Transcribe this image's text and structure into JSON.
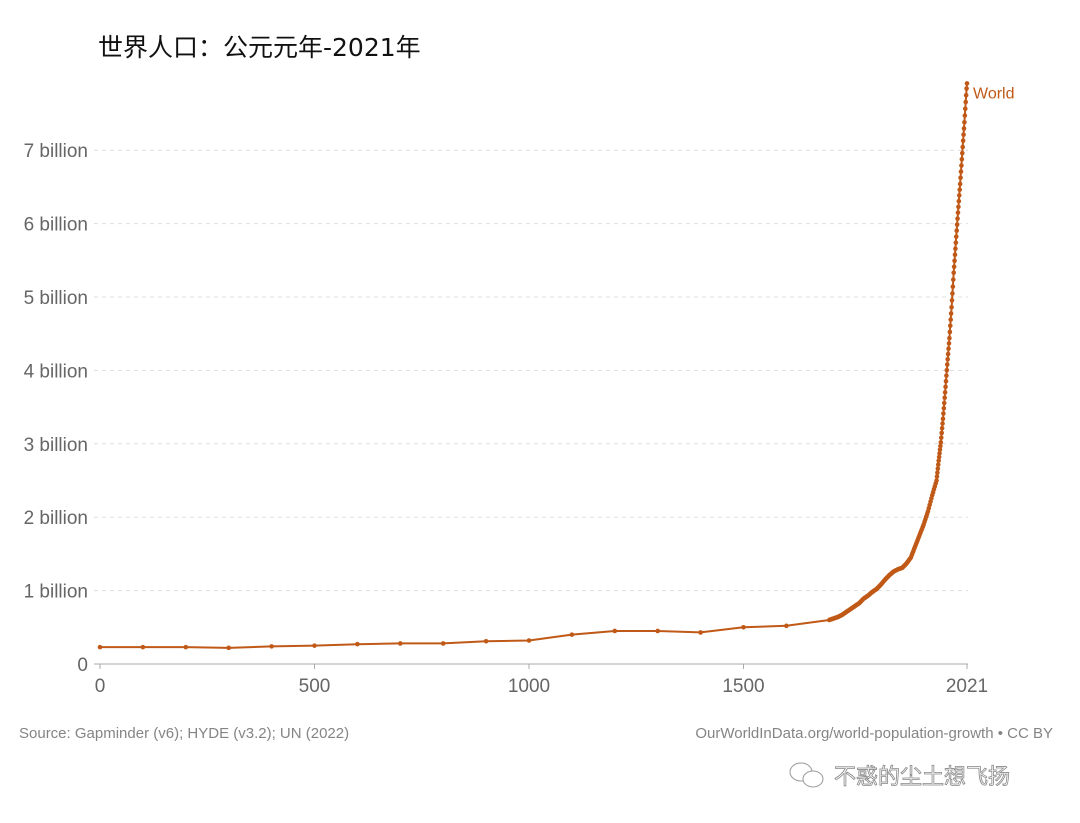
{
  "chart_data": {
    "type": "line",
    "title": "世界人口：公元元年-2021年",
    "xlabel": "",
    "ylabel": "",
    "xlim": [
      0,
      2021
    ],
    "ylim": [
      0,
      8
    ],
    "grid": true,
    "x_ticks": [
      0,
      500,
      1000,
      1500,
      2021
    ],
    "x_tick_labels": [
      "0",
      "500",
      "1000",
      "1500",
      "2021"
    ],
    "y_ticks": [
      0,
      1,
      2,
      3,
      4,
      5,
      6,
      7
    ],
    "y_tick_labels": [
      "0",
      "1 billion",
      "2 billion",
      "3 billion",
      "4 billion",
      "5 billion",
      "6 billion",
      "7 billion"
    ],
    "color": "#c05917",
    "series": [
      {
        "name": "World",
        "x": [
          0,
          100,
          200,
          300,
          400,
          500,
          600,
          700,
          800,
          900,
          1000,
          1100,
          1200,
          1300,
          1400,
          1500,
          1600,
          1700,
          1710,
          1720,
          1730,
          1740,
          1750,
          1760,
          1770,
          1780,
          1790,
          1800,
          1810,
          1820,
          1830,
          1840,
          1850,
          1860,
          1870,
          1880,
          1890,
          1900,
          1910,
          1920,
          1930,
          1940,
          1950,
          1955,
          1960,
          1965,
          1970,
          1975,
          1980,
          1985,
          1990,
          1995,
          2000,
          2005,
          2010,
          2015,
          2020,
          2021
        ],
        "values": [
          0.23,
          0.23,
          0.23,
          0.22,
          0.24,
          0.25,
          0.27,
          0.28,
          0.28,
          0.31,
          0.32,
          0.4,
          0.45,
          0.45,
          0.43,
          0.5,
          0.52,
          0.6,
          0.62,
          0.64,
          0.67,
          0.71,
          0.75,
          0.79,
          0.83,
          0.89,
          0.93,
          0.98,
          1.02,
          1.08,
          1.15,
          1.21,
          1.26,
          1.29,
          1.31,
          1.37,
          1.45,
          1.6,
          1.75,
          1.9,
          2.08,
          2.3,
          2.5,
          2.77,
          3.02,
          3.34,
          3.7,
          4.08,
          4.44,
          4.86,
          5.33,
          5.74,
          6.15,
          6.54,
          6.96,
          7.38,
          7.84,
          7.91
        ]
      }
    ],
    "legend": "end-of-line label"
  },
  "footer": {
    "source": "Source: Gapminder (v6); HYDE (v3.2); UN (2022)",
    "link": "OurWorldInData.org/world-population-growth • CC BY"
  },
  "watermark": "不惑的尘土想飞扬"
}
